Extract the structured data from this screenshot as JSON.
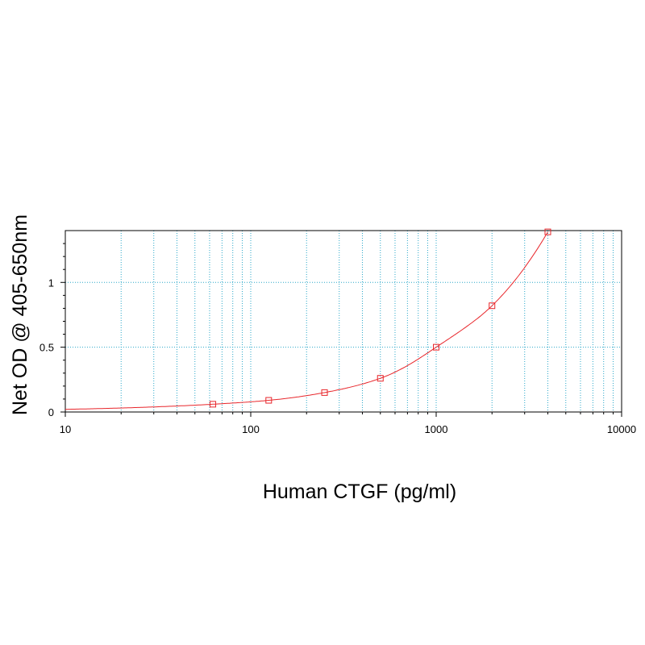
{
  "chart_data": {
    "type": "scatter",
    "title": "",
    "xlabel": "Human CTGF (pg/ml)",
    "ylabel": "Net OD @ 405-650nm",
    "xscale": "log",
    "xlim": [
      10,
      10000
    ],
    "ylim": [
      0,
      1.4
    ],
    "x_ticks": [
      10,
      100,
      1000,
      10000
    ],
    "x_tick_labels": [
      "10",
      "100",
      "1000",
      "10000"
    ],
    "y_ticks": [
      0,
      0.5,
      1
    ],
    "y_tick_labels": [
      "0",
      "0.5",
      "1"
    ],
    "grid": true,
    "legend": "none",
    "series": [
      {
        "x": [
          62.5,
          125,
          250,
          500,
          1000,
          2000,
          4000
        ],
        "y": [
          0.06,
          0.09,
          0.15,
          0.26,
          0.5,
          0.82,
          1.39
        ],
        "marker": "open-square",
        "fit": "smooth-curve"
      }
    ],
    "colors": {
      "series": "#e8262b",
      "grid": "#2aa7c9",
      "axis": "#000000"
    }
  }
}
